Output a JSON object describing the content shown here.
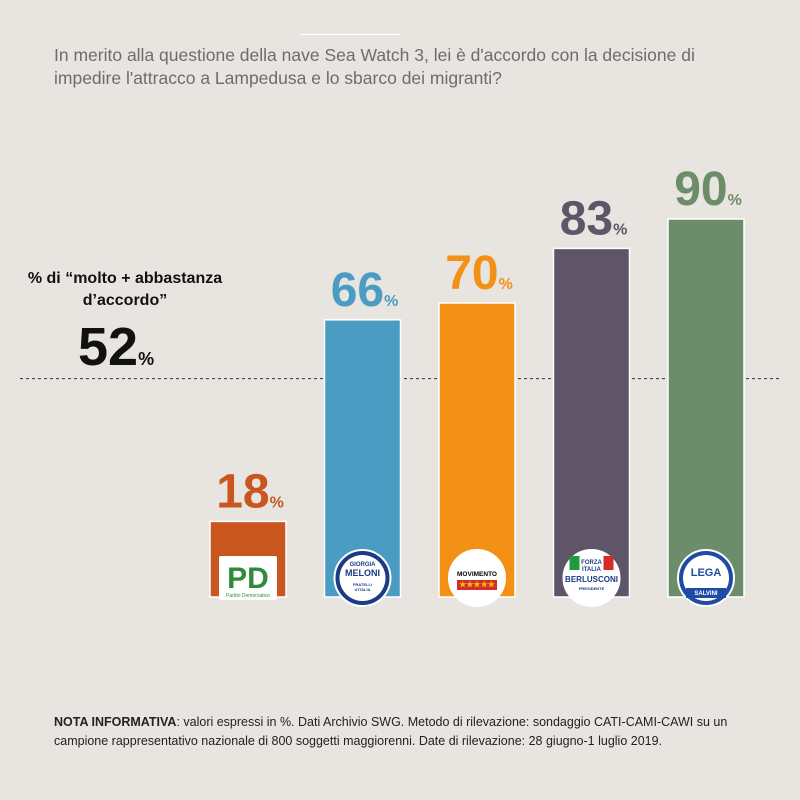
{
  "question": "In merito alla questione della nave Sea Watch 3, lei è d'accordo con la decisione di impedire l'attracco a Lampedusa e lo sbarco dei migranti?",
  "reference": {
    "label": "% di “molto + abbastanza d’accordo”",
    "value": "52",
    "unit": "%"
  },
  "note": {
    "heading": "NOTA INFORMATIVA",
    "text": ": valori espressi in %. Dati Archivio SWG. Metodo di rilevazione: sondaggio CATI-CAMI-CAWI su un campione rappresentativo nazionale di 800 soggetti maggiorenni. Date di rilevazione: 28 giugno-1 luglio 2019."
  },
  "chart_data": {
    "type": "bar",
    "title": "",
    "xlabel": "",
    "ylabel": "",
    "ylim": [
      0,
      90
    ],
    "reference_line": 52,
    "unit": "%",
    "categories": [
      "PD",
      "Fratelli d'Italia",
      "MoVimento 5 Stelle",
      "Forza Italia",
      "Lega"
    ],
    "values": [
      18,
      66,
      70,
      83,
      90
    ],
    "colors": [
      "#c8561e",
      "#4a9cc3",
      "#f39117",
      "#5e5668",
      "#6c8c6a"
    ],
    "logos": [
      {
        "icon": "pd-logo",
        "text": [
          "PD",
          "Partito Democratico"
        ]
      },
      {
        "icon": "fdi-logo",
        "text": [
          "GIORGIA",
          "MELONI",
          "FRATELLI",
          "d'ITALIA"
        ]
      },
      {
        "icon": "m5s-logo",
        "text": [
          "MOVIMENTO",
          "★★★★★"
        ]
      },
      {
        "icon": "fi-logo",
        "text": [
          "FORZA",
          "ITALIA",
          "BERLUSCONI",
          "PRESIDENTE"
        ]
      },
      {
        "icon": "lega-logo",
        "text": [
          "LEGA",
          "SALVINI"
        ]
      }
    ]
  }
}
